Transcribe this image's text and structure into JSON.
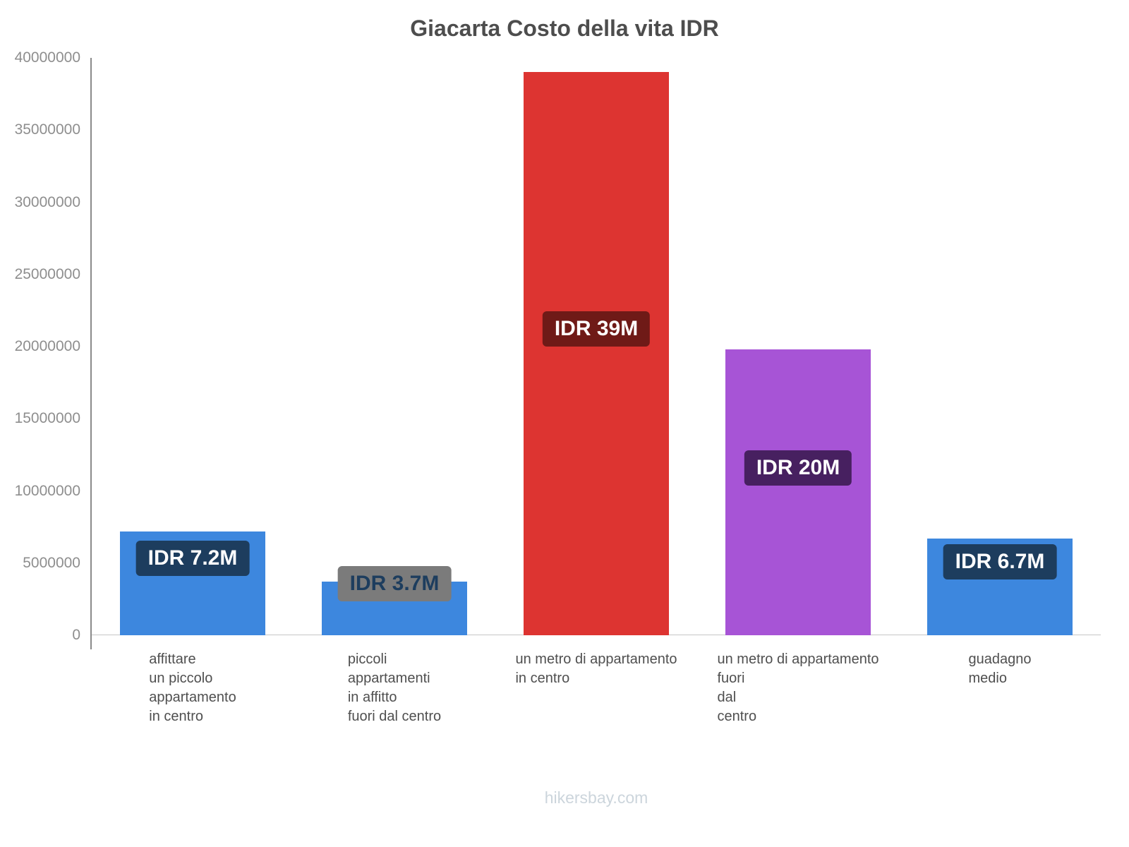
{
  "title": "Giacarta Costo della vita IDR",
  "footer": "hikersbay.com",
  "chart_data": {
    "type": "bar",
    "title": "Giacarta Costo della vita IDR",
    "categories": [
      "affittare\nun piccolo\nappartamento\nin centro",
      "piccoli\nappartamenti\nin affitto\nfuori dal centro",
      "un metro di appartamento\nin centro",
      "un metro di appartamento\nfuori\ndal\ncentro",
      "guadagno\nmedio"
    ],
    "values": [
      7200000,
      3700000,
      39000000,
      19800000,
      6700000
    ],
    "value_labels": [
      "IDR 7.2M",
      "IDR 3.7M",
      "IDR 39M",
      "IDR 20M",
      "IDR 6.7M"
    ],
    "bar_colors": [
      "#3d87de",
      "#3d87de",
      "#dd3431",
      "#a754d6",
      "#3d87de"
    ],
    "label_bg_colors": [
      "#1d3d5e",
      "#7b7b7b",
      "#6f1a17",
      "#472060",
      "#1d3d5e"
    ],
    "label_text_colors": [
      "#ffffff",
      "#1d3d5e",
      "#ffffff",
      "#ffffff",
      "#ffffff"
    ],
    "xlabel": "",
    "ylabel": "",
    "ylim": [
      0,
      40000000
    ],
    "yticks": [
      0,
      5000000,
      10000000,
      15000000,
      20000000,
      25000000,
      30000000,
      35000000,
      40000000
    ],
    "grid": false,
    "legend": false
  }
}
